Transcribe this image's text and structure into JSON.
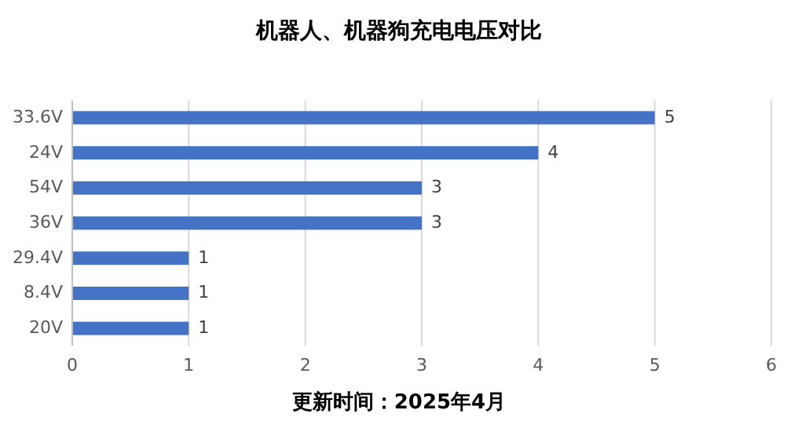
{
  "chart_data": {
    "type": "bar",
    "orientation": "horizontal",
    "title": "机器人、机器狗充电电压对比",
    "categories": [
      "33.6V",
      "24V",
      "54V",
      "36V",
      "29.4V",
      "8.4V",
      "20V"
    ],
    "values": [
      5,
      4,
      3,
      3,
      1,
      1,
      1
    ],
    "color": "#4472c4",
    "xlim": [
      0,
      6
    ],
    "xticks": [
      0,
      1,
      2,
      3,
      4,
      5,
      6
    ],
    "grid": "x",
    "data_labels": true,
    "annotations": [
      "更新时间：2025年4月"
    ]
  }
}
